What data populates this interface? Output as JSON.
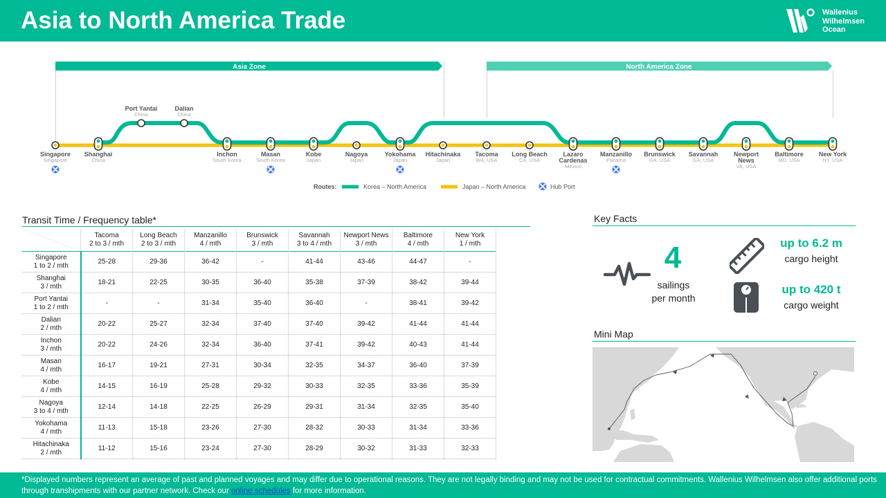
{
  "header": {
    "title": "Asia to North America Trade",
    "logo_lines": [
      "Wallenius",
      "Wilhelmsen",
      "Ocean"
    ]
  },
  "colors": {
    "brand": "#00b995",
    "korea_route": "#00b995",
    "japan_route": "#f6c210",
    "hub_port": "#4a7fe0",
    "zone_asia": "#00b995",
    "zone_north_america": "#4fd0b5"
  },
  "route_map": {
    "zones": [
      "Asia Zone",
      "North America Zone"
    ],
    "stops": [
      {
        "name": "Singapore",
        "sub": "Singapore",
        "korea": false,
        "hub": true
      },
      {
        "name": "Shanghai",
        "sub": "China",
        "korea": true,
        "hub": false
      },
      {
        "name": "Port Yantai",
        "sub": "China",
        "korea": true,
        "hub": false
      },
      {
        "name": "Dalian",
        "sub": "China",
        "korea": true,
        "hub": false
      },
      {
        "name": "Inchon",
        "sub": "South Korea",
        "korea": true,
        "hub": false
      },
      {
        "name": "Masan",
        "sub": "South Korea",
        "korea": true,
        "hub": true
      },
      {
        "name": "Kobe",
        "sub": "Japan",
        "korea": true,
        "hub": false
      },
      {
        "name": "Nagoya",
        "sub": "Japan",
        "korea": false,
        "hub": false
      },
      {
        "name": "Yokohama",
        "sub": "Japan",
        "korea": true,
        "hub": true
      },
      {
        "name": "Hitachinaka",
        "sub": "Japan",
        "korea": false,
        "hub": false
      },
      {
        "name": "Tacoma",
        "sub": "WA, USA",
        "korea": false,
        "hub": false
      },
      {
        "name": "Long Beach",
        "sub": "CA, USA",
        "korea": false,
        "hub": false
      },
      {
        "name": "Lazaro Cardenas",
        "sub": "Mexico",
        "korea": true,
        "hub": false
      },
      {
        "name": "Manzanillo",
        "sub": "Panama",
        "korea": true,
        "hub": true
      },
      {
        "name": "Brunswick",
        "sub": "GA, USA",
        "korea": true,
        "hub": false
      },
      {
        "name": "Savannah",
        "sub": "GA, USA",
        "korea": true,
        "hub": false
      },
      {
        "name": "Newport News",
        "sub": "VA, USA",
        "korea": true,
        "hub": false
      },
      {
        "name": "Baltimore",
        "sub": "MD, USA",
        "korea": true,
        "hub": false
      },
      {
        "name": "New York",
        "sub": "NY, USA",
        "korea": true,
        "hub": false
      }
    ],
    "legend": {
      "title": "Routes:",
      "korea": "Korea – North America",
      "japan": "Japan – North America",
      "hub": "Hub Port"
    }
  },
  "transit_table": {
    "title": "Transit Time / Frequency table*",
    "columns": [
      {
        "name": "Tacoma",
        "freq": "2 to 3 / mth"
      },
      {
        "name": "Long Beach",
        "freq": "2 to 3 / mth"
      },
      {
        "name": "Manzanillo",
        "freq": "4 / mth"
      },
      {
        "name": "Brunswick",
        "freq": "3 / mth"
      },
      {
        "name": "Savannah",
        "freq": "3 to 4 / mth"
      },
      {
        "name": "Newport News",
        "freq": "3 / mth"
      },
      {
        "name": "Baltimore",
        "freq": "4 / mth"
      },
      {
        "name": "New York",
        "freq": "1 / mth"
      }
    ],
    "rows": [
      {
        "name": "Singapore",
        "freq": "1 to 2 / mth",
        "values": [
          "25-28",
          "29-36",
          "36-42",
          "-",
          "41-44",
          "43-46",
          "44-47",
          "-"
        ]
      },
      {
        "name": "Shanghai",
        "freq": "3 / mth",
        "values": [
          "18-21",
          "22-25",
          "30-35",
          "36-40",
          "35-38",
          "37-39",
          "38-42",
          "39-44"
        ]
      },
      {
        "name": "Port Yantai",
        "freq": "1 to 2 / mth",
        "values": [
          "-",
          "-",
          "31-34",
          "35-40",
          "36-40",
          "-",
          "38-41",
          "39-42"
        ]
      },
      {
        "name": "Dalian",
        "freq": "2 / mth",
        "values": [
          "20-22",
          "25-27",
          "32-34",
          "37-40",
          "37-40",
          "39-42",
          "41-44",
          "41-44"
        ]
      },
      {
        "name": "Inchon",
        "freq": "3 / mth",
        "values": [
          "20-22",
          "24-26",
          "32-34",
          "36-40",
          "37-41",
          "39-42",
          "40-43",
          "41-44"
        ]
      },
      {
        "name": "Masan",
        "freq": "4 / mth",
        "values": [
          "16-17",
          "19-21",
          "27-31",
          "30-34",
          "32-35",
          "34-37",
          "36-40",
          "37-39"
        ]
      },
      {
        "name": "Kobe",
        "freq": "4 / mth",
        "values": [
          "14-15",
          "16-19",
          "25-28",
          "29-32",
          "30-33",
          "32-35",
          "33-36",
          "35-39"
        ]
      },
      {
        "name": "Nagoya",
        "freq": "3 to 4 / mth",
        "values": [
          "12-14",
          "14-18",
          "22-25",
          "26-29",
          "29-31",
          "31-34",
          "32-35",
          "35-40"
        ]
      },
      {
        "name": "Yokohama",
        "freq": "4 / mth",
        "values": [
          "11-13",
          "15-18",
          "23-26",
          "27-30",
          "28-32",
          "30-33",
          "31-34",
          "33-36"
        ]
      },
      {
        "name": "Hitachinaka",
        "freq": "2 / mth",
        "values": [
          "11-12",
          "15-16",
          "23-24",
          "27-30",
          "28-29",
          "30-32",
          "31-33",
          "32-33"
        ]
      }
    ]
  },
  "key_facts": {
    "title": "Key Facts",
    "sailings_number": "4",
    "sailings_label_1": "sailings",
    "sailings_label_2": "per month",
    "height_value": "up to 6.2 m",
    "height_label": "cargo height",
    "weight_value": "up to 420 t",
    "weight_label": "cargo weight"
  },
  "mini_map": {
    "title": "Mini Map"
  },
  "footer": {
    "text_before": "*Displayed numbers represent  an average of past and planned voyages and may differ due to operational reasons. They are not legally binding and may not be used for contractual commitments. Wallenius Wilhelmsen also offer additional ports through transhipments with our partner network.  Check our ",
    "link": "online schedules",
    "text_after": " for more information."
  }
}
